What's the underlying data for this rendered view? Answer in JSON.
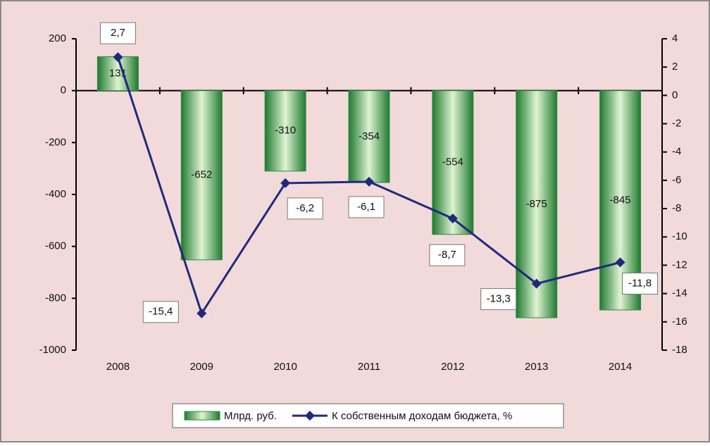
{
  "chart_data": {
    "type": "bar",
    "categories": [
      "2008",
      "2009",
      "2010",
      "2011",
      "2012",
      "2013",
      "2014"
    ],
    "series": [
      {
        "name": "Млрд. руб.",
        "color": "#2e8b3e",
        "values": [
          131,
          -652,
          -310,
          -354,
          -554,
          -875,
          -845
        ]
      },
      {
        "name": "К собственным доходам бюджета, %",
        "color": "#1f2a7a",
        "axis": "y2",
        "values": [
          2.7,
          -15.4,
          -6.2,
          -6.1,
          -8.7,
          -13.3,
          -11.8
        ],
        "value_labels": [
          "2,7",
          "-15,4",
          "-6,2",
          "-6,1",
          "-8,7",
          "-13,3",
          "-11,8"
        ]
      }
    ],
    "ylim": [
      -1000,
      200
    ],
    "yticks": [
      200,
      0,
      -200,
      -400,
      -600,
      -800,
      -1000
    ],
    "y2lim": [
      -18,
      4
    ],
    "y2ticks": [
      4,
      2,
      0,
      -2,
      -4,
      -6,
      -8,
      -10,
      -12,
      -14,
      -16,
      -18
    ],
    "legend": "bottom"
  }
}
